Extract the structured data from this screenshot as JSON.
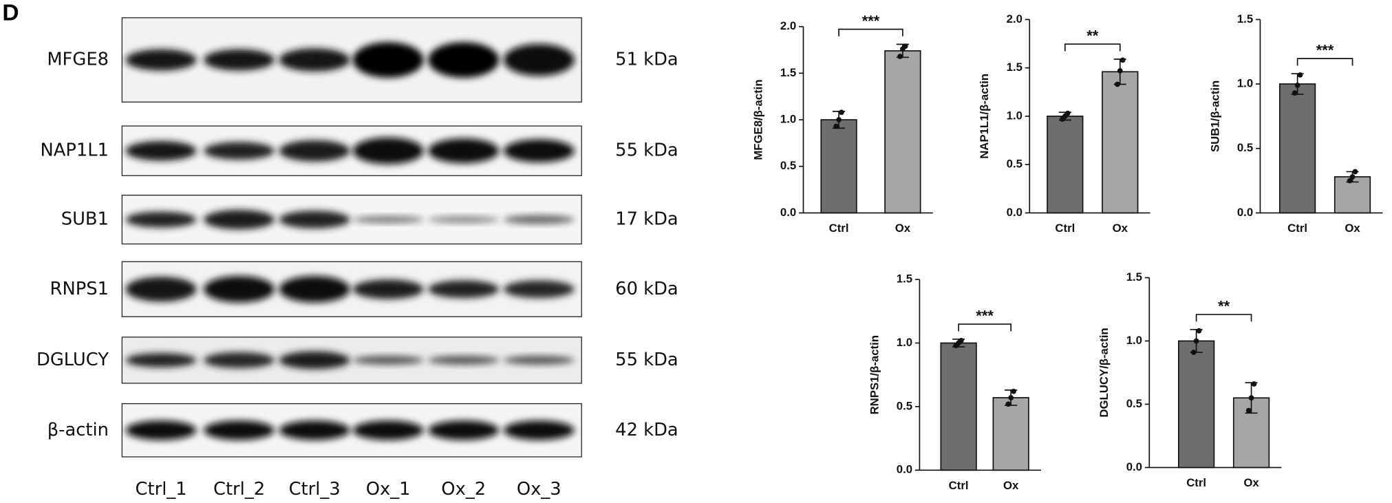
{
  "panel_label": "D",
  "blot": {
    "proteins": [
      "MFGE8",
      "NAP1L1",
      "SUB1",
      "RNPS1",
      "DGLUCY",
      "β-actin"
    ],
    "sizes": [
      "51 kDa",
      "55 kDa",
      "17 kDa",
      "60 kDa",
      "55 kDa",
      "42 kDa"
    ],
    "lanes": [
      "Ctrl_1",
      "Ctrl_2",
      "Ctrl_3",
      "Ox_1",
      "Ox_2",
      "Ox_3"
    ]
  },
  "chart_data": [
    {
      "type": "bar",
      "ylabel": "MFGE8/β-actin",
      "categories": [
        "Ctrl",
        "Ox"
      ],
      "values": [
        1.0,
        1.74
      ],
      "errors": [
        0.09,
        0.07
      ],
      "points": [
        [
          0.93,
          1.0,
          1.08
        ],
        [
          1.68,
          1.76,
          1.79
        ]
      ],
      "colors": [
        "#6e6e6e",
        "#a6a6a6"
      ],
      "significance": "***",
      "ylim": [
        0,
        2.0
      ],
      "yticks": [
        {
          "value": 0,
          "label": "0.0"
        },
        0.5,
        {
          "value": 1,
          "label": "1.0"
        },
        1.5,
        {
          "value": 2,
          "label": "2.0"
        }
      ]
    },
    {
      "type": "bar",
      "ylabel": "NAP1L1/β-actin",
      "categories": [
        "Ctrl",
        "Ox"
      ],
      "values": [
        1.0,
        1.46
      ],
      "errors": [
        0.04,
        0.13
      ],
      "points": [
        [
          0.97,
          1.0,
          1.03
        ],
        [
          1.33,
          1.47,
          1.58
        ]
      ],
      "colors": [
        "#6e6e6e",
        "#a6a6a6"
      ],
      "significance": "**",
      "ylim": [
        0,
        2.0
      ],
      "yticks": [
        {
          "value": 0,
          "label": "0.0"
        },
        0.5,
        {
          "value": 1,
          "label": "1.0"
        },
        1.5,
        {
          "value": 2,
          "label": "2.0"
        }
      ]
    },
    {
      "type": "bar",
      "ylabel": "SUB1/β-actin",
      "categories": [
        "Ctrl",
        "Ox"
      ],
      "values": [
        1.0,
        0.28
      ],
      "errors": [
        0.08,
        0.04
      ],
      "points": [
        [
          0.93,
          0.99,
          1.07
        ],
        [
          0.25,
          0.28,
          0.32
        ]
      ],
      "colors": [
        "#6e6e6e",
        "#a6a6a6"
      ],
      "significance": "***",
      "ylim": [
        0,
        1.5
      ],
      "yticks": [
        {
          "value": 0,
          "label": "0.0"
        },
        0.5,
        {
          "value": 1,
          "label": "1.0"
        },
        1.5
      ]
    },
    {
      "type": "bar",
      "ylabel": "RNPS1/β-actin",
      "categories": [
        "Ctrl",
        "Ox"
      ],
      "values": [
        1.0,
        0.57
      ],
      "errors": [
        0.03,
        0.06
      ],
      "points": [
        [
          0.98,
          1.0,
          1.02
        ],
        [
          0.52,
          0.57,
          0.62
        ]
      ],
      "colors": [
        "#6e6e6e",
        "#a6a6a6"
      ],
      "significance": "***",
      "ylim": [
        0,
        1.5
      ],
      "yticks": [
        {
          "value": 0,
          "label": "0.0"
        },
        0.5,
        {
          "value": 1,
          "label": "1.0"
        },
        1.5
      ]
    },
    {
      "type": "bar",
      "ylabel": "DGLUCY/β-actin",
      "categories": [
        "Ctrl",
        "Ox"
      ],
      "values": [
        1.0,
        0.55
      ],
      "errors": [
        0.09,
        0.12
      ],
      "points": [
        [
          0.91,
          1.0,
          1.08
        ],
        [
          0.45,
          0.55,
          0.66
        ]
      ],
      "colors": [
        "#6e6e6e",
        "#a6a6a6"
      ],
      "significance": "**",
      "ylim": [
        0,
        1.5
      ],
      "yticks": [
        {
          "value": 0,
          "label": "0.0"
        },
        0.5,
        {
          "value": 1,
          "label": "1.0"
        },
        1.5
      ]
    }
  ]
}
